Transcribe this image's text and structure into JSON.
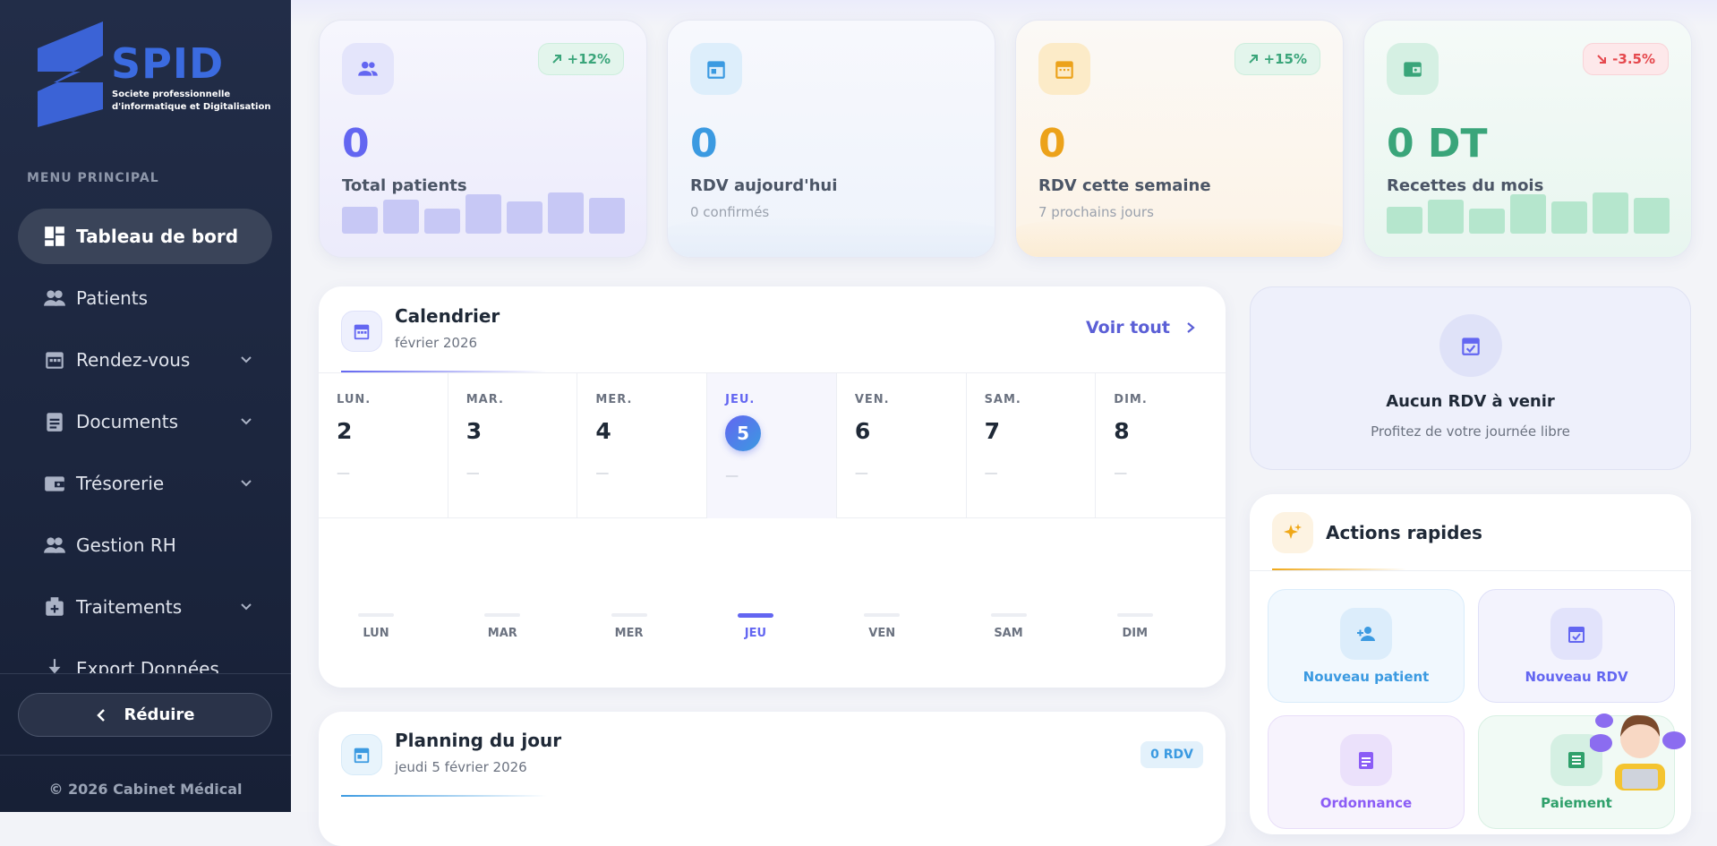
{
  "sidebar": {
    "logo_title": "SPID",
    "logo_subtitle_1": "Societe professionnelle",
    "logo_subtitle_2": "d'informatique et Digitalisation",
    "section": "MENU PRINCIPAL",
    "menu": [
      {
        "label": "Tableau de bord"
      },
      {
        "label": "Patients"
      },
      {
        "label": "Rendez-vous"
      },
      {
        "label": "Documents"
      },
      {
        "label": "Trésorerie"
      },
      {
        "label": "Gestion RH"
      },
      {
        "label": "Traitements"
      },
      {
        "label": "Export Données"
      }
    ],
    "collapse": "Réduire",
    "footer": "© 2026 Cabinet Médical"
  },
  "stats": [
    {
      "value": "0",
      "label": "Total patients",
      "trend": "+12%"
    },
    {
      "value": "0",
      "label": "RDV aujourd'hui",
      "sub": "0 confirmés"
    },
    {
      "value": "0",
      "label": "RDV cette semaine",
      "sub": "7 prochains jours",
      "trend": "+15%"
    },
    {
      "value": "0 DT",
      "label": "Recettes du mois",
      "trend": "-3.5%"
    }
  ],
  "calendar": {
    "title": "Calendrier",
    "subtitle": "février 2026",
    "link": "Voir tout",
    "days": [
      {
        "name": "LUN.",
        "num": "2",
        "empty": "—",
        "short": "LUN"
      },
      {
        "name": "MAR.",
        "num": "3",
        "empty": "—",
        "short": "MAR"
      },
      {
        "name": "MER.",
        "num": "4",
        "empty": "—",
        "short": "MER"
      },
      {
        "name": "JEU.",
        "num": "5",
        "empty": "—",
        "short": "JEU"
      },
      {
        "name": "VEN.",
        "num": "6",
        "empty": "—",
        "short": "VEN"
      },
      {
        "name": "SAM.",
        "num": "7",
        "empty": "—",
        "short": "SAM"
      },
      {
        "name": "DIM.",
        "num": "8",
        "empty": "—",
        "short": "DIM"
      }
    ]
  },
  "upcoming": {
    "title": "Aucun RDV à venir",
    "text": "Profitez de votre journée libre"
  },
  "actions": {
    "title": "Actions rapides",
    "items": [
      "Nouveau patient",
      "Nouveau RDV",
      "Ordonnance",
      "Paiement"
    ]
  },
  "planning": {
    "title": "Planning du jour",
    "subtitle": "jeudi 5 février 2026",
    "badge": "0 RDV"
  }
}
